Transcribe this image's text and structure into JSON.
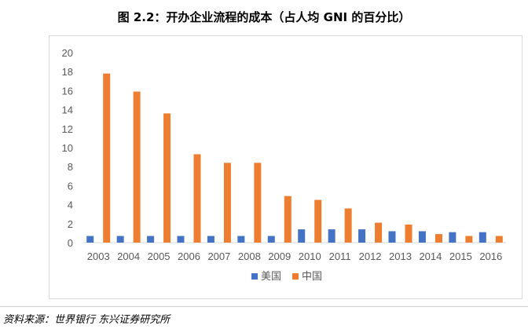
{
  "title": "图 2.2：开办企业流程的成本（占人均 GNI 的百分比）",
  "source": "资料来源：世界银行 东兴证券研究所",
  "chart_data": {
    "type": "bar",
    "title": "图 2.2：开办企业流程的成本（占人均 GNI 的百分比）",
    "xlabel": "",
    "ylabel": "",
    "categories": [
      "2003",
      "2004",
      "2005",
      "2006",
      "2007",
      "2008",
      "2009",
      "2010",
      "2011",
      "2012",
      "2013",
      "2014",
      "2015",
      "2016"
    ],
    "ylim": [
      0,
      20
    ],
    "yticks": [
      0,
      2,
      4,
      6,
      8,
      10,
      12,
      14,
      16,
      18,
      20
    ],
    "grid": false,
    "legend_position": "bottom",
    "series": [
      {
        "name": "美国",
        "color": "#4472c4",
        "values": [
          0.7,
          0.7,
          0.7,
          0.7,
          0.7,
          0.7,
          0.7,
          1.4,
          1.4,
          1.4,
          1.2,
          1.2,
          1.1,
          1.1
        ]
      },
      {
        "name": "中国",
        "color": "#ed7d31",
        "values": [
          17.8,
          15.9,
          13.6,
          9.3,
          8.4,
          8.4,
          4.9,
          4.5,
          3.6,
          2.1,
          1.9,
          0.9,
          0.7,
          0.7
        ]
      }
    ]
  }
}
